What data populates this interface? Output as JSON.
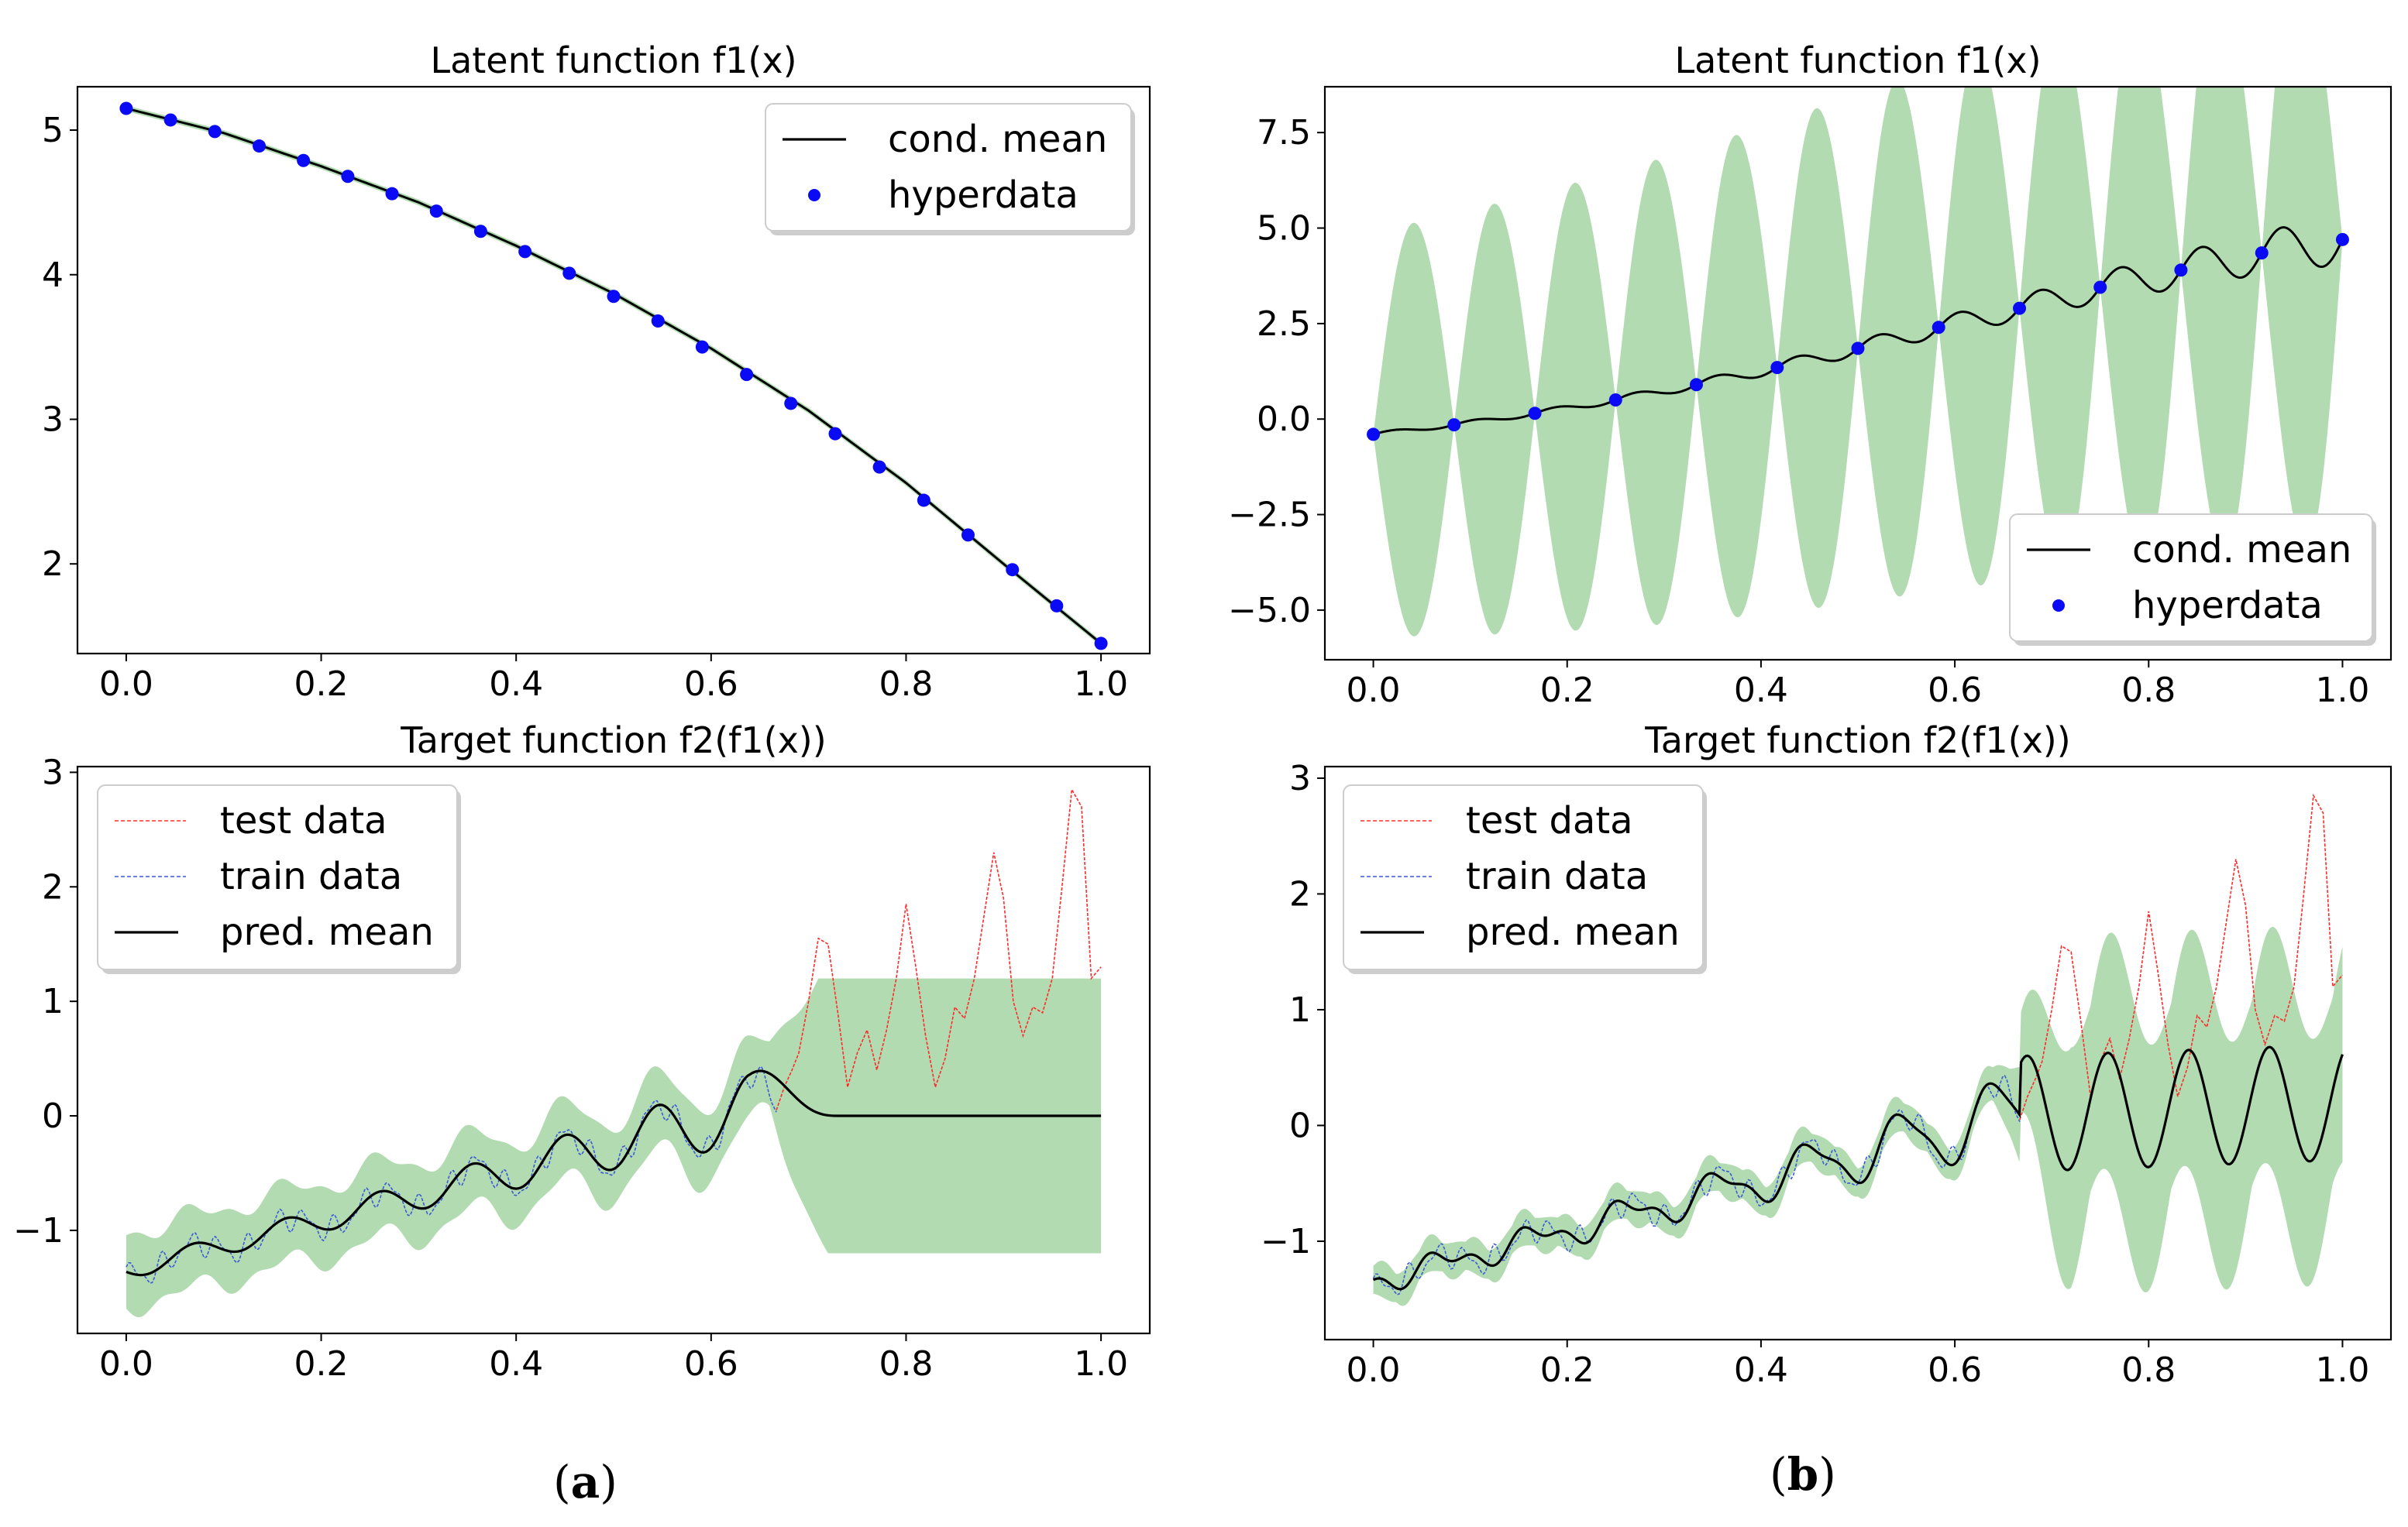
{
  "colors": {
    "band": "#b2dbb1",
    "mean": "#000000",
    "points": "#0a0af5",
    "test": "#ff2b2b",
    "train": "#3b5bd6"
  },
  "panels": [
    {
      "label": "(a)",
      "label_letter": "a"
    },
    {
      "label": "(b)",
      "label_letter": "b"
    }
  ],
  "chart_data": [
    {
      "id": "a-top",
      "type": "line",
      "title": "Latent function f1(x)",
      "xlim": [
        -0.05,
        1.05
      ],
      "ylim": [
        1.38,
        5.3
      ],
      "xticks": [
        0.0,
        0.2,
        0.4,
        0.6,
        0.8,
        1.0
      ],
      "xtick_labels": [
        "0.0",
        "0.2",
        "0.4",
        "0.6",
        "0.8",
        "1.0"
      ],
      "yticks": [
        2,
        3,
        4,
        5
      ],
      "ytick_labels": [
        "2",
        "3",
        "4",
        "5"
      ],
      "legend": {
        "position": "top-right",
        "entries": [
          "cond. mean",
          "hyperdata"
        ]
      },
      "mean": {
        "name": "cond. mean",
        "x": [
          0.0,
          0.1,
          0.2,
          0.3,
          0.4,
          0.5,
          0.6,
          0.7,
          0.8,
          0.9,
          1.0
        ],
        "y": [
          5.15,
          4.98,
          4.75,
          4.5,
          4.2,
          3.87,
          3.49,
          3.06,
          2.56,
          2.0,
          1.45
        ]
      },
      "band": {
        "x": [
          0.0,
          0.1,
          0.2,
          0.3,
          0.4,
          0.5,
          0.6,
          0.7,
          0.8,
          0.9,
          1.0
        ],
        "lower": [
          5.13,
          4.96,
          4.73,
          4.48,
          4.18,
          3.85,
          3.47,
          3.04,
          2.54,
          1.98,
          1.43
        ],
        "upper": [
          5.17,
          5.0,
          4.77,
          4.52,
          4.22,
          3.89,
          3.51,
          3.08,
          2.58,
          2.02,
          1.47
        ]
      },
      "hyperdata": {
        "name": "hyperdata",
        "x": [
          0.0,
          0.0455,
          0.0909,
          0.1364,
          0.1818,
          0.2273,
          0.2727,
          0.3182,
          0.3636,
          0.4091,
          0.4545,
          0.5,
          0.5455,
          0.5909,
          0.6364,
          0.6818,
          0.7273,
          0.7727,
          0.8182,
          0.8636,
          0.9091,
          0.9545,
          1.0
        ],
        "y": [
          5.15,
          5.07,
          4.99,
          4.89,
          4.79,
          4.68,
          4.56,
          4.44,
          4.3,
          4.16,
          4.01,
          3.85,
          3.68,
          3.5,
          3.31,
          3.11,
          2.9,
          2.67,
          2.44,
          2.2,
          1.96,
          1.71,
          1.45
        ]
      }
    },
    {
      "id": "a-bottom",
      "type": "line",
      "title": "Target function f2(f1(x))",
      "xlim": [
        -0.05,
        1.05
      ],
      "ylim": [
        -1.9,
        3.05
      ],
      "xticks": [
        0.0,
        0.2,
        0.4,
        0.6,
        0.8,
        1.0
      ],
      "xtick_labels": [
        "0.0",
        "0.2",
        "0.4",
        "0.6",
        "0.8",
        "1.0"
      ],
      "yticks": [
        -1,
        0,
        1,
        2,
        3
      ],
      "ytick_labels": [
        "−1",
        "0",
        "1",
        "2",
        "3"
      ],
      "legend": {
        "position": "top-left",
        "entries": [
          "test data",
          "train data",
          "pred. mean"
        ]
      },
      "test_data": {
        "name": "test data",
        "x": [
          0.667,
          0.675,
          0.683,
          0.69,
          0.7,
          0.71,
          0.72,
          0.73,
          0.74,
          0.75,
          0.76,
          0.77,
          0.78,
          0.79,
          0.8,
          0.81,
          0.82,
          0.83,
          0.84,
          0.85,
          0.86,
          0.87,
          0.88,
          0.89,
          0.9,
          0.91,
          0.92,
          0.93,
          0.94,
          0.95,
          0.96,
          0.97,
          0.98,
          0.99,
          1.0
        ],
        "y": [
          0.05,
          0.25,
          0.4,
          0.55,
          1.0,
          1.55,
          1.5,
          0.9,
          0.25,
          0.55,
          0.75,
          0.4,
          0.75,
          1.2,
          1.85,
          1.3,
          0.7,
          0.25,
          0.5,
          0.95,
          0.85,
          1.2,
          1.75,
          2.3,
          1.9,
          1.0,
          0.7,
          0.95,
          0.9,
          1.2,
          2.0,
          2.85,
          2.7,
          1.2,
          1.3
        ]
      },
      "train_data": {
        "name": "train data",
        "x_start": 0.0,
        "x_end": 0.667
      },
      "pred_mean": {
        "name": "pred. mean",
        "x_start": 0.0,
        "x_end": 1.0
      },
      "flat_value": 0.0,
      "flat_band": [
        -1.2,
        1.2
      ]
    },
    {
      "id": "b-top",
      "type": "line",
      "title": "Latent function f1(x)",
      "xlim": [
        -0.05,
        1.05
      ],
      "ylim": [
        -6.3,
        8.7
      ],
      "xticks": [
        0.0,
        0.2,
        0.4,
        0.6,
        0.8,
        1.0
      ],
      "xtick_labels": [
        "0.0",
        "0.2",
        "0.4",
        "0.6",
        "0.8",
        "1.0"
      ],
      "yticks": [
        -5.0,
        -2.5,
        0.0,
        2.5,
        5.0,
        7.5
      ],
      "ytick_labels": [
        "−5.0",
        "−2.5",
        "0.0",
        "2.5",
        "5.0",
        "7.5"
      ],
      "legend": {
        "position": "bottom-right",
        "entries": [
          "cond. mean",
          "hyperdata"
        ]
      },
      "band_amplitude": {
        "at_x0": 5.3,
        "at_x1": 8.0
      },
      "hyperdata": {
        "name": "hyperdata",
        "x": [
          0.0,
          0.0833,
          0.1667,
          0.25,
          0.3333,
          0.4167,
          0.5,
          0.5833,
          0.6667,
          0.75,
          0.8333,
          0.9167,
          1.0
        ],
        "y": [
          -0.4,
          -0.15,
          0.15,
          0.5,
          0.9,
          1.35,
          1.85,
          2.4,
          2.9,
          3.45,
          3.9,
          4.35,
          4.7
        ]
      }
    },
    {
      "id": "b-bottom",
      "type": "line",
      "title": "Target function f2(f1(x))",
      "xlim": [
        -0.05,
        1.05
      ],
      "ylim": [
        -1.85,
        3.1
      ],
      "xticks": [
        0.0,
        0.2,
        0.4,
        0.6,
        0.8,
        1.0
      ],
      "xtick_labels": [
        "0.0",
        "0.2",
        "0.4",
        "0.6",
        "0.8",
        "1.0"
      ],
      "yticks": [
        -1,
        0,
        1,
        2,
        3
      ],
      "ytick_labels": [
        "−1",
        "0",
        "1",
        "2",
        "3"
      ],
      "legend": {
        "position": "top-left",
        "entries": [
          "test data",
          "train data",
          "pred. mean"
        ]
      },
      "test_data": {
        "name": "test data",
        "x": [
          0.667,
          0.675,
          0.683,
          0.69,
          0.7,
          0.71,
          0.72,
          0.73,
          0.74,
          0.75,
          0.76,
          0.77,
          0.78,
          0.79,
          0.8,
          0.81,
          0.82,
          0.83,
          0.84,
          0.85,
          0.86,
          0.87,
          0.88,
          0.89,
          0.9,
          0.91,
          0.92,
          0.93,
          0.94,
          0.95,
          0.96,
          0.97,
          0.98,
          0.99,
          1.0
        ],
        "y": [
          0.05,
          0.25,
          0.4,
          0.55,
          1.0,
          1.55,
          1.5,
          0.9,
          0.25,
          0.55,
          0.75,
          0.4,
          0.75,
          1.2,
          1.85,
          1.3,
          0.7,
          0.25,
          0.5,
          0.95,
          0.85,
          1.2,
          1.75,
          2.3,
          1.9,
          1.0,
          0.7,
          0.95,
          0.9,
          1.2,
          2.0,
          2.85,
          2.7,
          1.2,
          1.3
        ]
      },
      "train_data": {
        "name": "train data",
        "x_start": 0.0,
        "x_end": 0.667
      },
      "pred_mean": {
        "name": "pred. mean",
        "x_start": 0.0,
        "x_end": 1.0
      }
    }
  ]
}
